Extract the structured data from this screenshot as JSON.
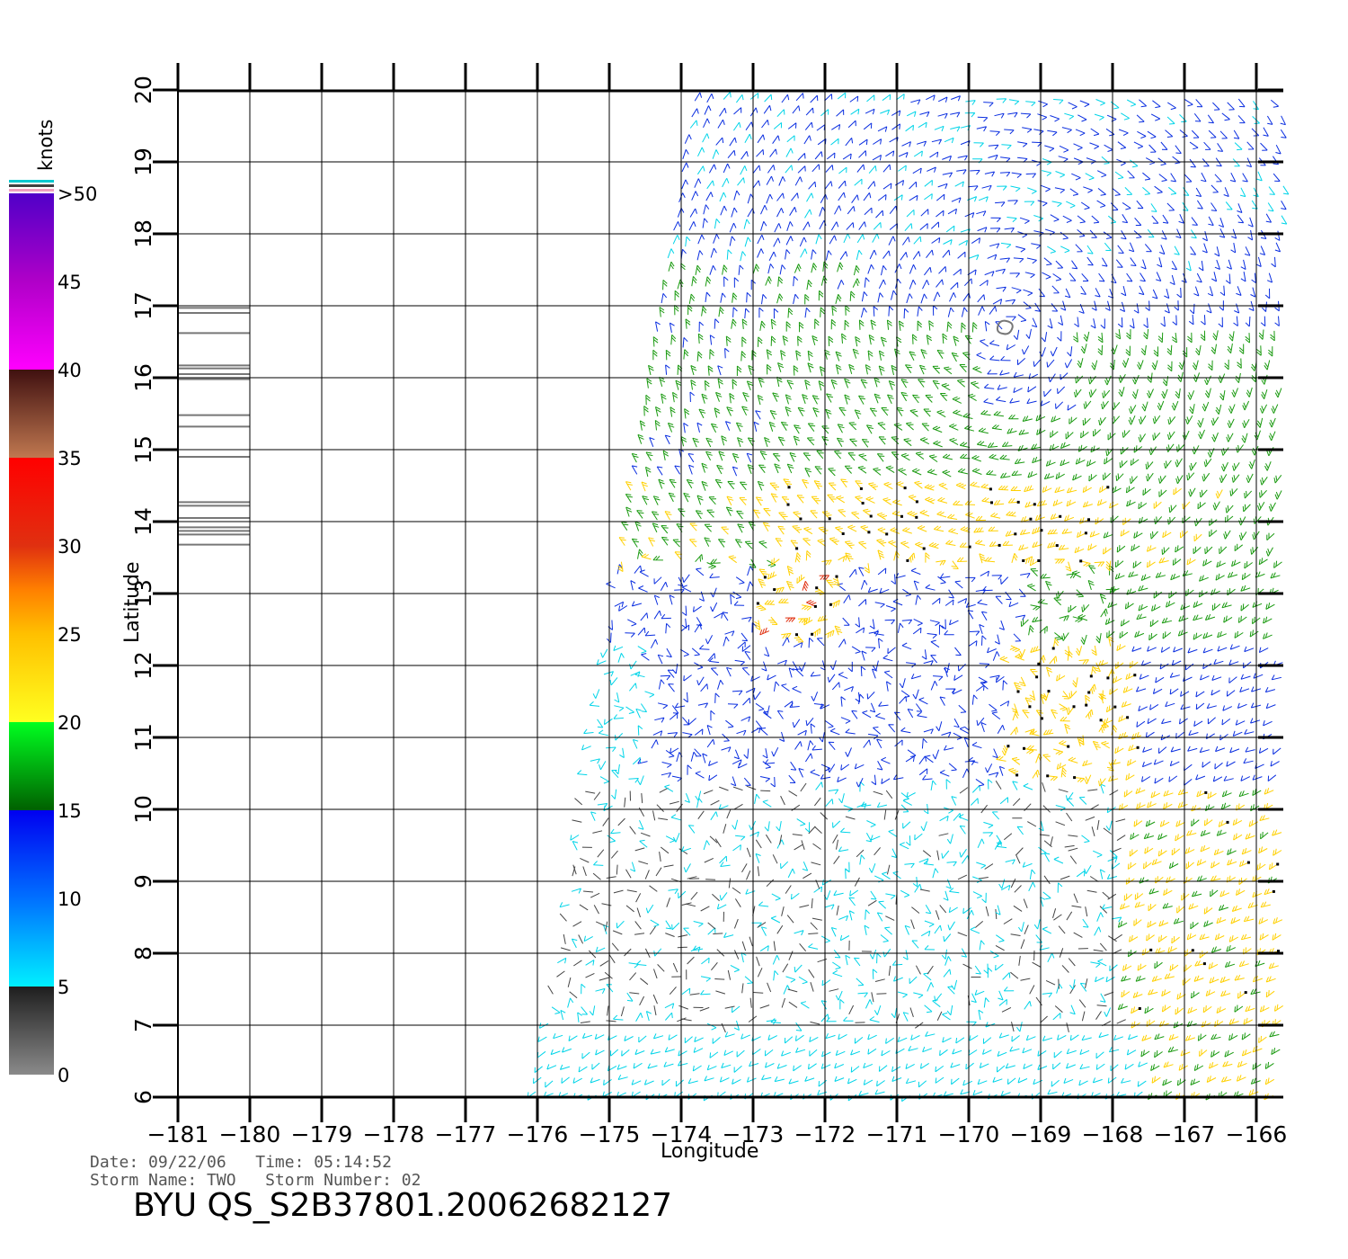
{
  "colorbar": {
    "unit": "knots",
    "labels": [
      ">50",
      "45",
      "40",
      "35",
      "30",
      "25",
      "20",
      "15",
      "10",
      "5",
      "0"
    ]
  },
  "axes": {
    "xlabel": "Longitude",
    "ylabel": "Latitude",
    "x_ticks": [
      "-181",
      "-180",
      "-179",
      "-178",
      "-177",
      "-176",
      "-175",
      "-174",
      "-173",
      "-172",
      "-171",
      "-170",
      "-169",
      "-168",
      "-167",
      "-166"
    ],
    "y_ticks": [
      "6",
      "7",
      "8",
      "9",
      "10",
      "11",
      "12",
      "13",
      "14",
      "15",
      "16",
      "17",
      "18",
      "19",
      "20"
    ],
    "xlim": [
      -181,
      -165.6
    ],
    "ylim": [
      6,
      20
    ],
    "grid": true
  },
  "info": {
    "date_line": "Date: 09/22/06   Time: 05:14:52",
    "storm_line": "Storm Name: TWO   Storm Number: 02",
    "file_id": "BYU QS_S2B37801.20062682127"
  },
  "colors": {
    "calm": "#444444",
    "light": "#00d4e8",
    "moderate": "#0a2ee0",
    "fresh": "#1a9a10",
    "strong": "#ffd000",
    "gale": "#e03010"
  },
  "rain_flags": {
    "longitude_range": [
      -181,
      -180
    ],
    "latitudes": [
      16.97,
      16.9,
      16.62,
      16.17,
      16.13,
      16.05,
      15.98,
      15.48,
      15.32,
      14.9,
      14.27,
      14.22,
      14.05,
      13.92,
      13.87,
      13.82,
      13.68
    ]
  },
  "chart_data": {
    "type": "wind vector map",
    "xlabel": "Longitude",
    "ylabel": "Latitude",
    "xlim": [
      -181,
      -165.6
    ],
    "ylim": [
      6,
      20
    ],
    "color_scale_knots": [
      0,
      5,
      10,
      15,
      20,
      25,
      30,
      35,
      40,
      45,
      50
    ],
    "swath": {
      "north_edge_lat": 20,
      "south_edge_lat": 6,
      "west_lon_at_north": -173.8,
      "west_lon_at_south": -176,
      "east_lon": -165.6
    },
    "storm_center": {
      "lon": -169.5,
      "lat": 16.7
    }
  }
}
